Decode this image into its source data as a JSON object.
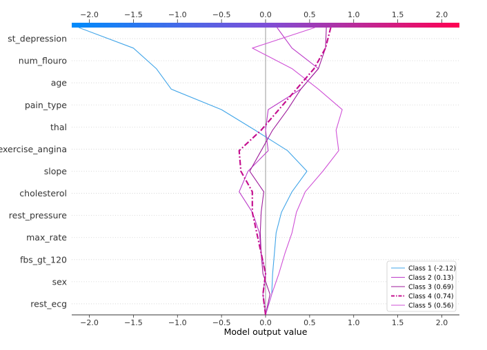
{
  "chart_data": {
    "type": "line",
    "chart_kind": "decision-plot",
    "xlabel": "Model output value",
    "ylabel": "",
    "xlim": [
      -2.2,
      2.2
    ],
    "xticks": [
      -2.0,
      -1.5,
      -1.0,
      -0.5,
      0.0,
      0.5,
      1.0,
      1.5,
      2.0
    ],
    "x_tick_labels": [
      "−2.0",
      "−1.5",
      "−1.0",
      "−0.5",
      "0.0",
      "0.5",
      "1.0",
      "1.5",
      "2.0"
    ],
    "base_value": 0.0,
    "features": [
      "st_depression",
      "num_flouro",
      "age",
      "pain_type",
      "thal",
      "exercise_angina",
      "slope",
      "cholesterol",
      "rest_pressure",
      "max_rate",
      "fbs_gt_120",
      "sex",
      "rest_ecg"
    ],
    "colorbar": {
      "from_color": "#008bfb",
      "to_color": "#ff0052"
    },
    "grid": "dotted horizontal",
    "legend_position": "lower-right",
    "series": [
      {
        "name": "Class 1 (-2.12)",
        "color": "#3fa4e8",
        "style": "solid",
        "x_values": [
          0.0,
          0.07,
          0.08,
          0.1,
          0.12,
          0.18,
          0.3,
          0.47,
          0.25,
          -0.12,
          -0.5,
          -1.07,
          -1.24,
          -1.5,
          -2.12
        ]
      },
      {
        "name": "Class 2 (0.13)",
        "color": "#bb39c8",
        "style": "solid",
        "x_values": [
          0.0,
          -0.03,
          0.0,
          -0.05,
          -0.07,
          -0.15,
          -0.3,
          -0.2,
          0.03,
          0.0,
          0.03,
          0.4,
          0.6,
          0.3,
          0.13
        ]
      },
      {
        "name": "Class 3 (0.69)",
        "color": "#9d1a9a",
        "style": "solid",
        "x_values": [
          0.0,
          0.05,
          -0.03,
          -0.05,
          -0.06,
          -0.05,
          -0.02,
          -0.18,
          -0.05,
          0.08,
          0.25,
          0.4,
          0.6,
          0.68,
          0.69
        ]
      },
      {
        "name": "Class 4 (0.74)",
        "color": "#c4108f",
        "style": "dashdot",
        "x_values": [
          0.0,
          -0.03,
          0.0,
          -0.05,
          -0.1,
          -0.15,
          -0.15,
          -0.28,
          -0.3,
          -0.05,
          0.15,
          0.35,
          0.55,
          0.68,
          0.74
        ]
      },
      {
        "name": "Class 5 (0.56)",
        "color": "#cf4fd6",
        "style": "solid",
        "x_values": [
          0.0,
          0.07,
          0.15,
          0.22,
          0.3,
          0.35,
          0.45,
          0.65,
          0.83,
          0.8,
          0.87,
          0.6,
          0.3,
          -0.15,
          0.56
        ]
      }
    ]
  }
}
